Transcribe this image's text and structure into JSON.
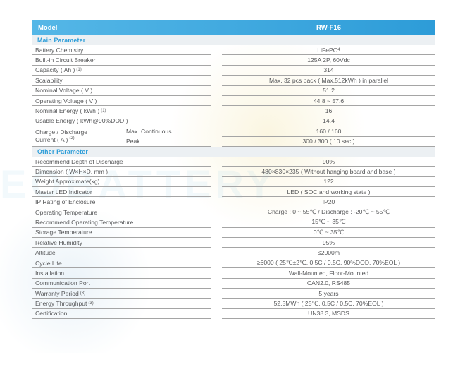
{
  "watermark": {
    "text": "EOBATTERY"
  },
  "table": {
    "header": {
      "model_label": "Model",
      "model_value": "RW-F16"
    },
    "sections": [
      {
        "title": "Main Parameter",
        "rows": [
          {
            "type": "simple",
            "label": "Battery Chemistry",
            "value": "LiFePO",
            "value_sub": "4"
          },
          {
            "type": "simple",
            "label": "Built-in Circuit Breaker",
            "value": "125A 2P, 60Vdc"
          },
          {
            "type": "simple",
            "label": "Capacity ( Ah )",
            "label_sup": "(1)",
            "value": "314"
          },
          {
            "type": "simple",
            "label": "Scalability",
            "value": "Max. 32 pcs pack ( Max.512kWh ) in parallel"
          },
          {
            "type": "simple",
            "label": "Nominal Voltage ( V )",
            "value": "51.2"
          },
          {
            "type": "simple",
            "label": "Operating Voltage ( V )",
            "value": "44.8 ~ 57.6"
          },
          {
            "type": "simple",
            "label": "Nominal Energy ( kWh )",
            "label_sup": "(1)",
            "value": "16"
          },
          {
            "type": "simple",
            "label": "Usable Energy ( kWh@90%DOD )",
            "value": "14.4"
          },
          {
            "type": "compound",
            "label_line1": "Charge / Discharge",
            "label_line2": "Current ( A )",
            "label_sup": "(2)",
            "subrows": [
              {
                "label": "Max. Continuous",
                "value": "160 / 160"
              },
              {
                "label": "Peak",
                "value": "300 / 300 ( 10 sec )"
              }
            ]
          }
        ]
      },
      {
        "title": "Other  Parameter",
        "rows": [
          {
            "type": "simple",
            "label": "Recommend Depth of Discharge",
            "value": "90%"
          },
          {
            "type": "simple",
            "label": "Dimension ( W×H×D, mm )",
            "value": "480×830×235 ( Without hanging board and base )"
          },
          {
            "type": "simple",
            "label": "Weight Approximate(kg)",
            "value": "122"
          },
          {
            "type": "simple",
            "label": "Master LED Indicator",
            "value": "LED ( SOC and working state )"
          },
          {
            "type": "simple",
            "label": "IP Rating of Enclosure",
            "value": "IP20"
          },
          {
            "type": "simple",
            "label": "Operating Temperature",
            "value": "Charge : 0 ~ 55℃ / Discharge : -20℃ ~ 55℃"
          },
          {
            "type": "simple",
            "label": "Recommend Operating Temperature",
            "value": "15℃ ~ 35℃"
          },
          {
            "type": "simple",
            "label": "Storage Temperature",
            "value": "0℃ ~ 35℃"
          },
          {
            "type": "simple",
            "label": "Relative Humidity",
            "value": "95%"
          },
          {
            "type": "simple",
            "label": "Altitude",
            "value": "≤2000m"
          },
          {
            "type": "simple",
            "label": "Cycle Life",
            "value": "≥6000 ( 25℃±2℃, 0.5C / 0.5C, 90%DOD, 70%EOL )"
          },
          {
            "type": "simple",
            "label": "Installation",
            "value": "Wall-Mounted, Floor-Mounted"
          },
          {
            "type": "simple",
            "label": "Communication Port",
            "value": "CAN2.0, RS485"
          },
          {
            "type": "simple",
            "label": "Warranty Period",
            "label_sup": "(3)",
            "value": "5 years"
          },
          {
            "type": "simple",
            "label": "Energy Throughput",
            "label_sup": "(3)",
            "value": "52.5MWh ( 25℃, 0.5C / 0.5C, 70%EOL )"
          },
          {
            "type": "simple",
            "label": "Certification",
            "value": "UN38.3, MSDS"
          }
        ]
      }
    ]
  },
  "colors": {
    "header_blue_left": "#55b7e7",
    "header_blue_right": "#2d9cd8",
    "section_title_blue": "#2e9ed9",
    "section_bg": "#ecf0f3",
    "row_text": "#58595b",
    "row_border": "#a5a5a5"
  }
}
